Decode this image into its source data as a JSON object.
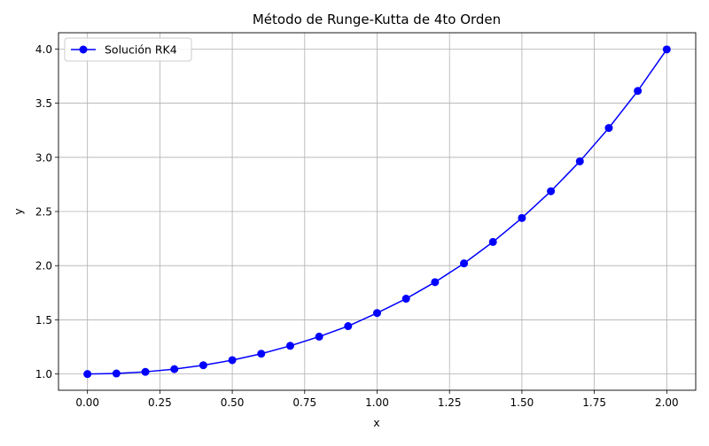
{
  "chart_data": {
    "type": "line",
    "title": "Método de Runge-Kutta de 4to Orden",
    "xlabel": "x",
    "ylabel": "y",
    "xlim": [
      -0.1,
      2.1
    ],
    "ylim": [
      0.85,
      4.15
    ],
    "xticks": [
      0.0,
      0.25,
      0.5,
      0.75,
      1.0,
      1.25,
      1.5,
      1.75,
      2.0
    ],
    "xtick_labels": [
      "0.00",
      "0.25",
      "0.50",
      "0.75",
      "1.00",
      "1.25",
      "1.50",
      "1.75",
      "2.00"
    ],
    "yticks": [
      1.0,
      1.5,
      2.0,
      2.5,
      3.0,
      3.5,
      4.0
    ],
    "ytick_labels": [
      "1.0",
      "1.5",
      "2.0",
      "2.5",
      "3.0",
      "3.5",
      "4.0"
    ],
    "grid": true,
    "legend_position": "top-left",
    "series": [
      {
        "name": "Solución RK4",
        "color": "#0000ff",
        "marker": "circle",
        "x": [
          0.0,
          0.1,
          0.2,
          0.3,
          0.4,
          0.5,
          0.6,
          0.7,
          0.8,
          0.9,
          1.0,
          1.1,
          1.2,
          1.3,
          1.4,
          1.5,
          1.6,
          1.7,
          1.8,
          1.9,
          2.0
        ],
        "y": [
          1.0,
          1.005,
          1.02,
          1.045,
          1.081,
          1.128,
          1.187,
          1.26,
          1.345,
          1.442,
          1.563,
          1.695,
          1.848,
          2.021,
          2.219,
          2.44,
          2.687,
          2.963,
          3.271,
          3.613,
          3.996
        ]
      }
    ]
  }
}
